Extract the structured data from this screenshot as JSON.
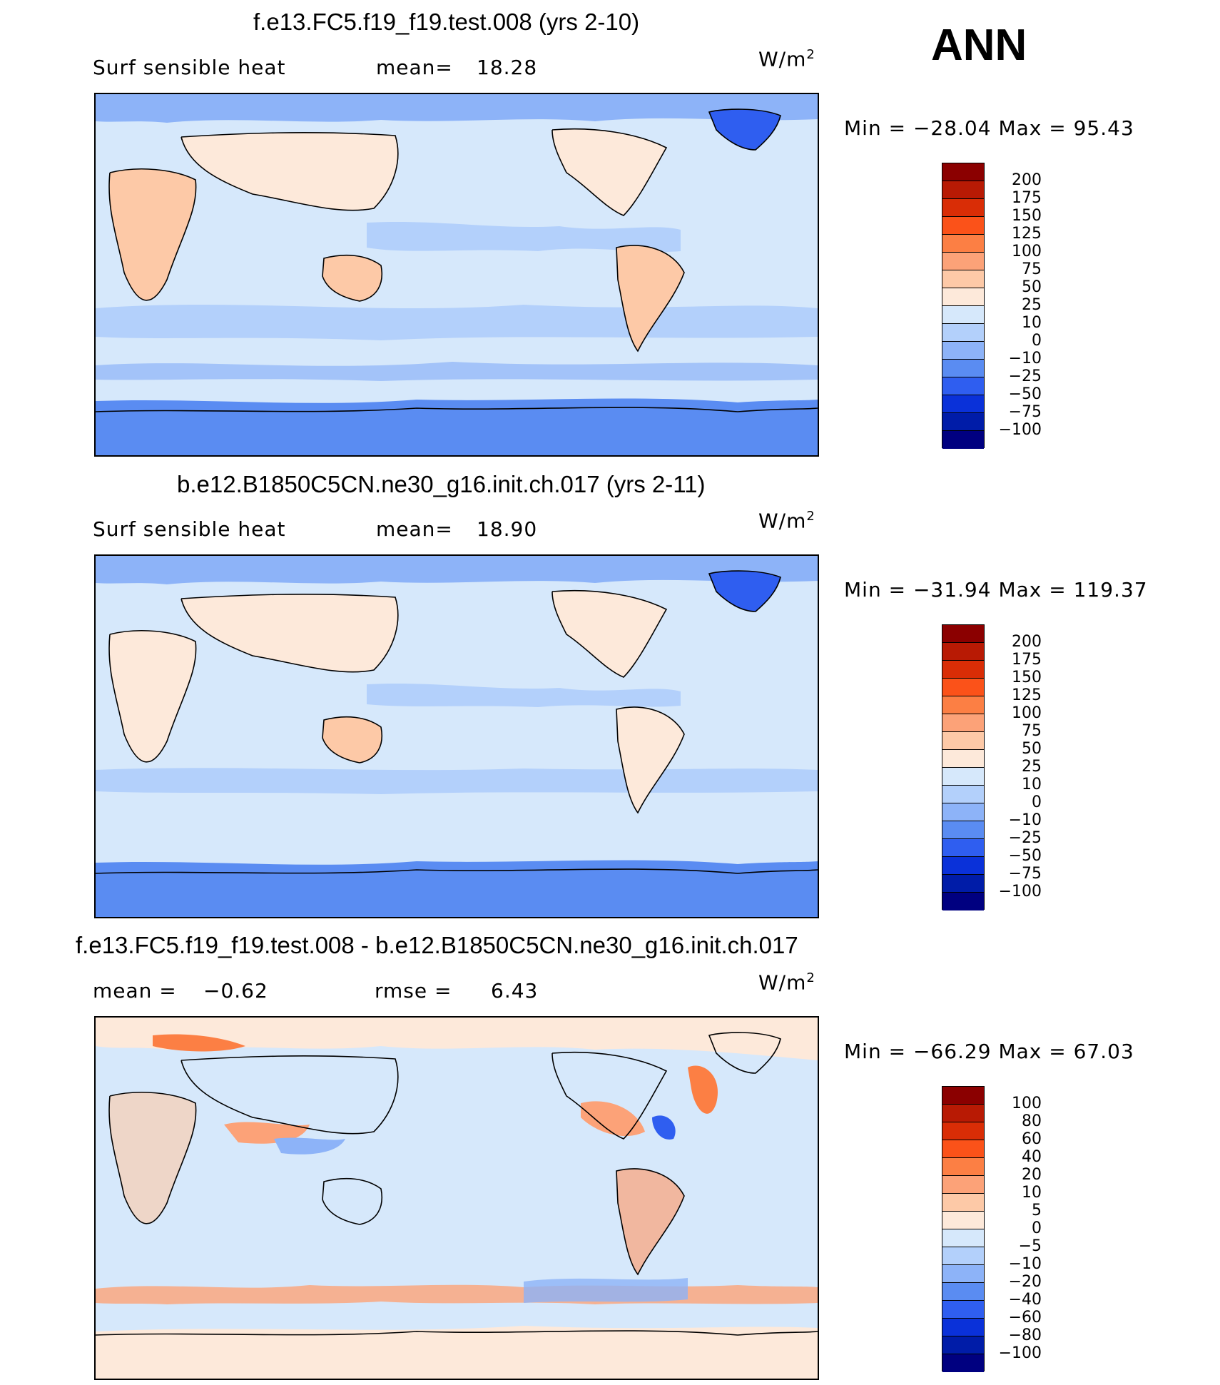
{
  "season": "ANN",
  "units_label": "W/m",
  "units_sup": "2",
  "panels": [
    {
      "title": "f.e13.FC5.f19_f19.test.008 (yrs 2-10)",
      "left_label": "Surf  sensible  heat",
      "stat_label": "mean=",
      "stat_value": "18.28",
      "minmax": "Min  =  −28.04  Max  =    95.43",
      "colorbar": {
        "labels": [
          "200",
          "175",
          "150",
          "125",
          "100",
          "75",
          "50",
          "25",
          "10",
          "0",
          "−10",
          "−25",
          "−50",
          "−75",
          "−100"
        ],
        "colors": [
          "#8b0000",
          "#b81a04",
          "#d92d06",
          "#fb5219",
          "#fc7f44",
          "#fca278",
          "#fdc9a7",
          "#fde9da",
          "#d6e8fb",
          "#b3d0fb",
          "#8db3f8",
          "#5a8cf2",
          "#2f5ef0",
          "#0a31d9",
          "#001ca8",
          "#000080"
        ]
      }
    },
    {
      "title": "b.e12.B1850C5CN.ne30_g16.init.ch.017 (yrs 2-11)",
      "left_label": "Surf  sensible  heat",
      "stat_label": "mean=",
      "stat_value": "18.90",
      "minmax": "Min  =  −31.94  Max  =  119.37",
      "colorbar": {
        "labels": [
          "200",
          "175",
          "150",
          "125",
          "100",
          "75",
          "50",
          "25",
          "10",
          "0",
          "−10",
          "−25",
          "−50",
          "−75",
          "−100"
        ],
        "colors": [
          "#8b0000",
          "#b81a04",
          "#d92d06",
          "#fb5219",
          "#fc7f44",
          "#fca278",
          "#fdc9a7",
          "#fde9da",
          "#d6e8fb",
          "#b3d0fb",
          "#8db3f8",
          "#5a8cf2",
          "#2f5ef0",
          "#0a31d9",
          "#001ca8",
          "#000080"
        ]
      }
    },
    {
      "title": "f.e13.FC5.f19_f19.test.008 - b.e12.B1850C5CN.ne30_g16.init.ch.017",
      "left_label": "mean  =",
      "left_value": "−0.62",
      "stat_label": "rmse  =",
      "stat_value": "6.43",
      "minmax": "Min  =  −66.29  Max  =    67.03",
      "colorbar": {
        "labels": [
          "100",
          "80",
          "60",
          "40",
          "20",
          "10",
          "5",
          "0",
          "−5",
          "−10",
          "−20",
          "−40",
          "−60",
          "−80",
          "−100"
        ],
        "colors": [
          "#8b0000",
          "#b81a04",
          "#d92d06",
          "#fb5219",
          "#fc7f44",
          "#fca278",
          "#fdc9a7",
          "#fde9da",
          "#d6e8fb",
          "#b3d0fb",
          "#8db3f8",
          "#5a8cf2",
          "#2f5ef0",
          "#0a31d9",
          "#001ca8",
          "#000080"
        ]
      }
    }
  ]
}
